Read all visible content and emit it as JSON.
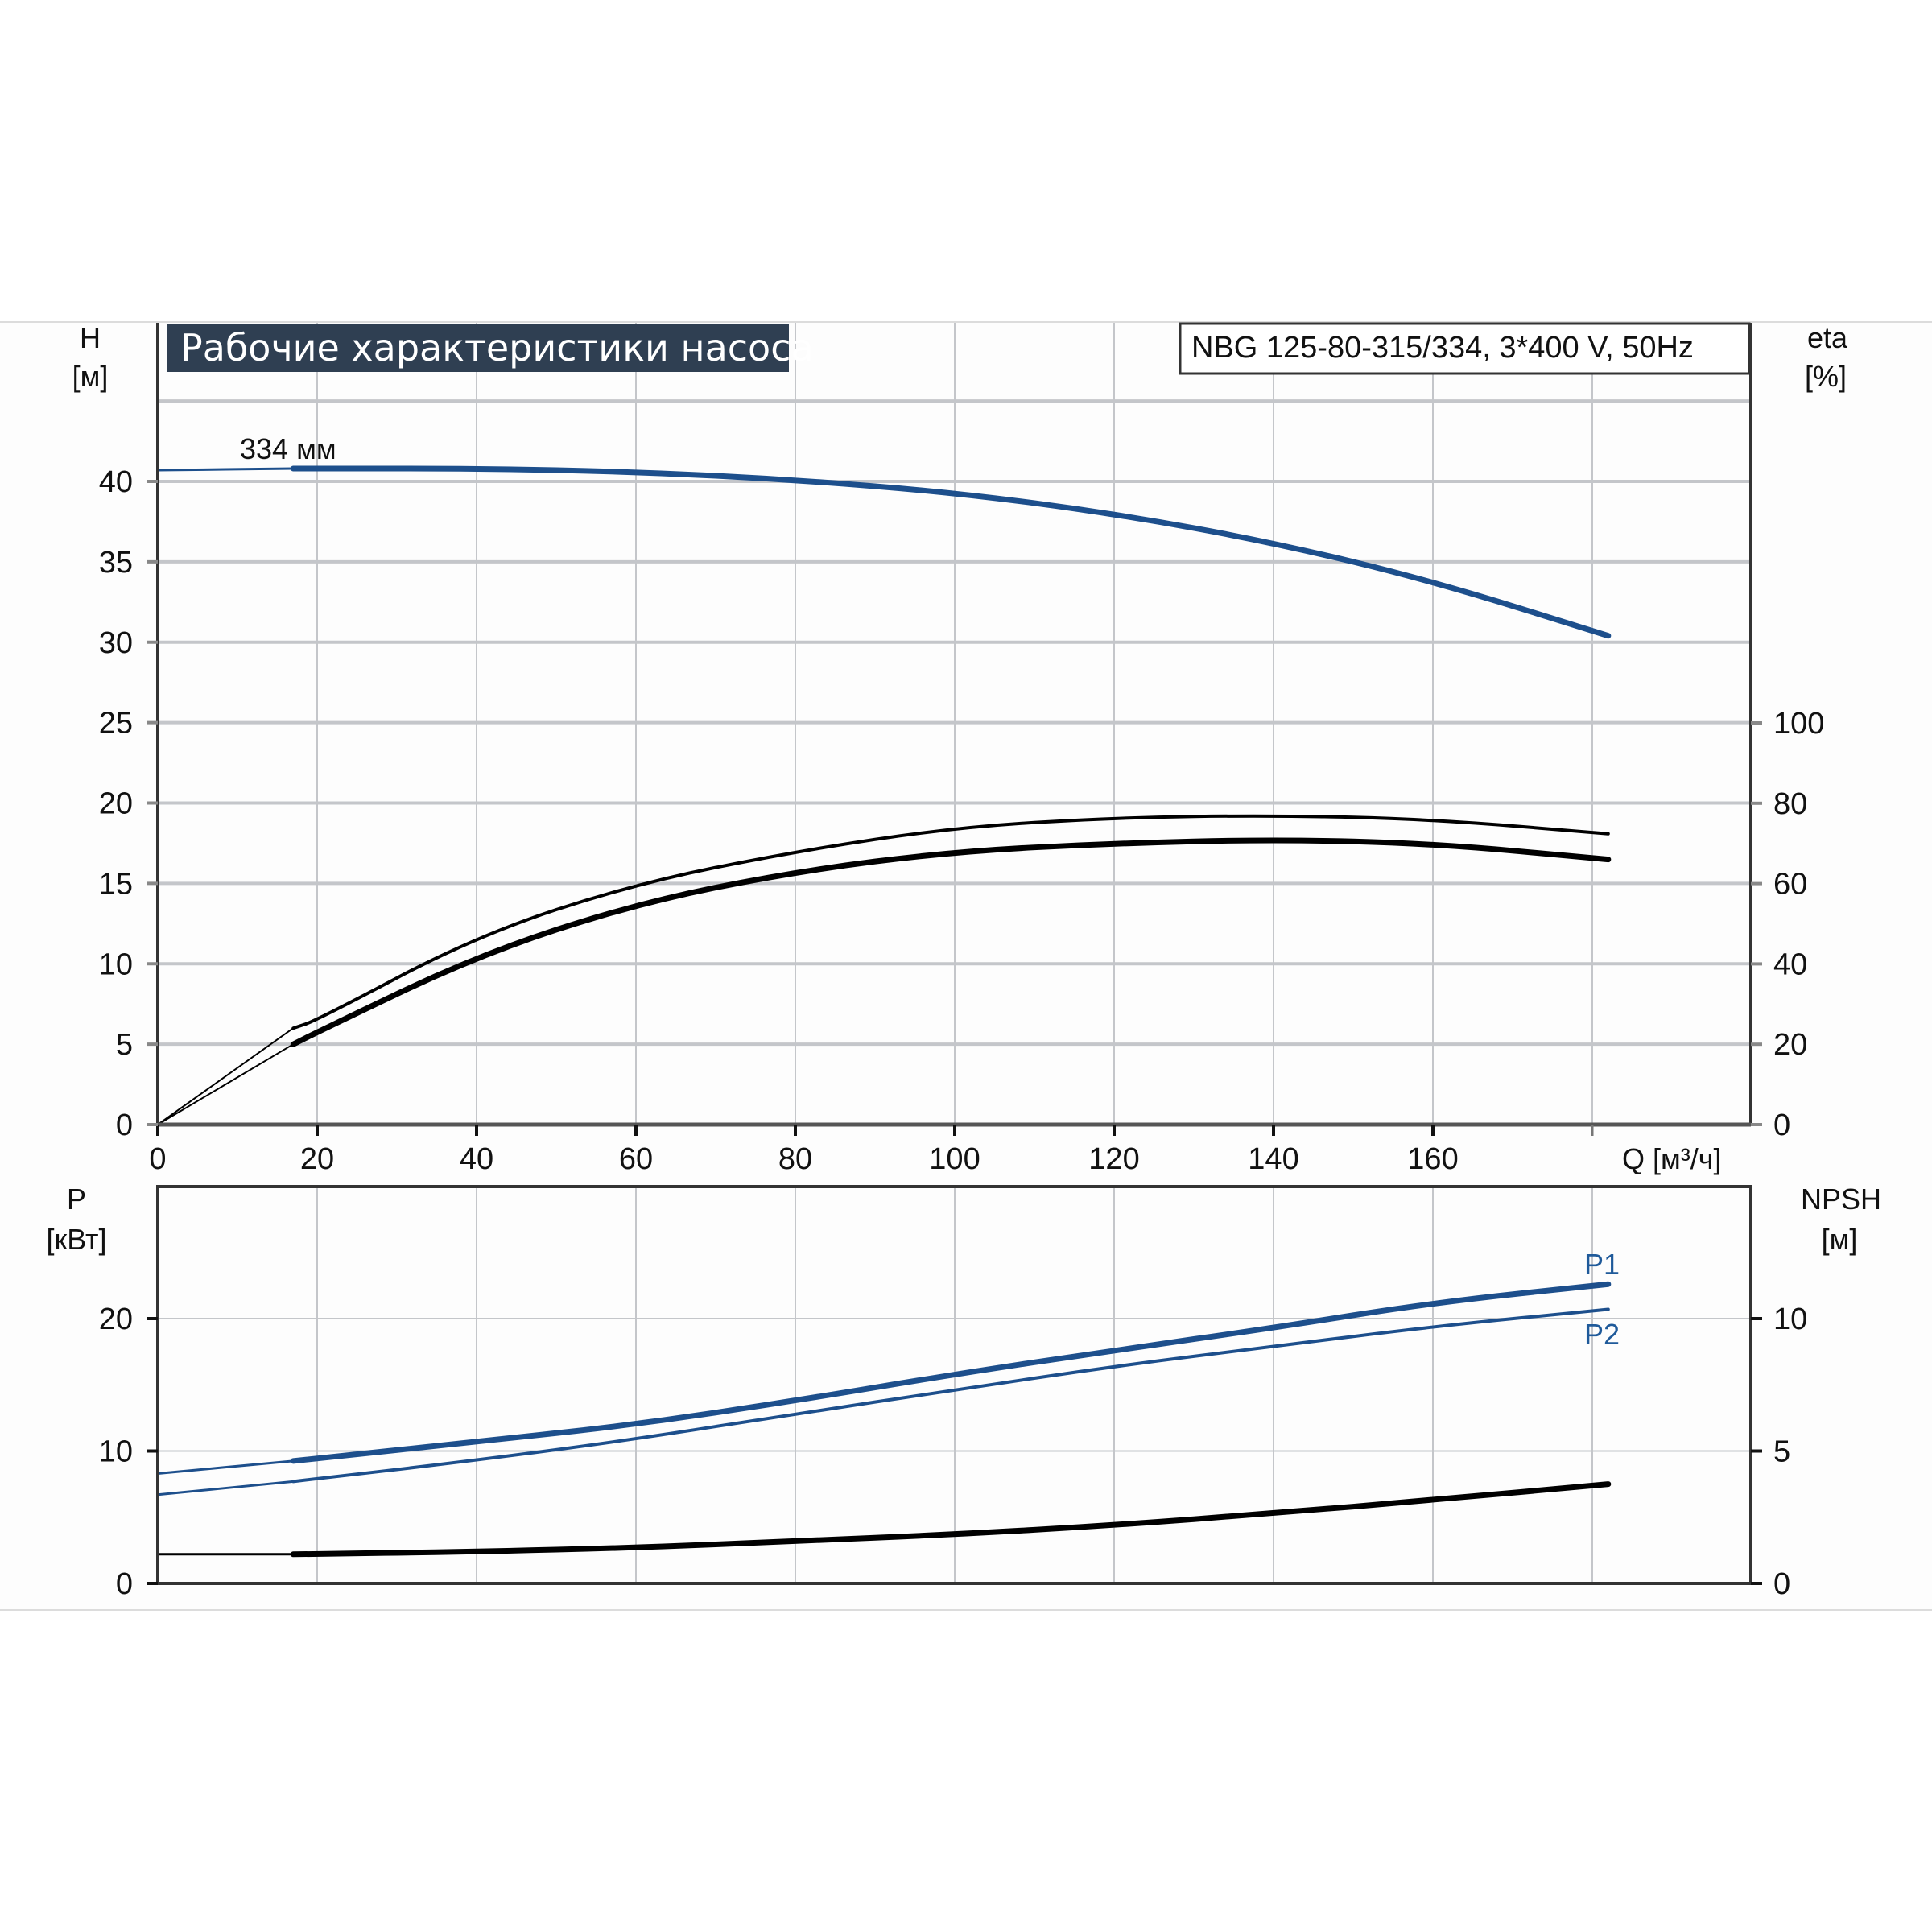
{
  "title": "Рабочие характеристики насоса",
  "model": "NBG 125-80-315/334, 3*400 V, 50Hz",
  "impeller_label": "334 мм",
  "colors": {
    "blue": "#1d4f8c",
    "black": "#000000",
    "title_bg": "#2f3f52",
    "grid": "#c4c6ca"
  },
  "chart_data": [
    {
      "type": "line",
      "name": "head-efficiency",
      "xlabel": "Q [м³/ч]",
      "ylabel": {
        "title": "H",
        "unit": "[м]"
      },
      "y2label": {
        "title": "eta",
        "unit": "[%]"
      },
      "xlim": [
        0,
        180
      ],
      "ylim": [
        0,
        45
      ],
      "y2lim": [
        0,
        100
      ],
      "x_ticks": [
        "0",
        "20",
        "40",
        "60",
        "80",
        "100",
        "120",
        "140",
        "160"
      ],
      "y_ticks": [
        "0",
        "5",
        "10",
        "15",
        "20",
        "25",
        "30",
        "35",
        "40"
      ],
      "y2_ticks": [
        "0",
        "20",
        "40",
        "60",
        "80",
        "100"
      ],
      "grid": true,
      "series": [
        {
          "axis": "left",
          "color": "#1d4f8c",
          "x": [
            0,
            17,
            20,
            40,
            60,
            80,
            100,
            120,
            140,
            160,
            182
          ],
          "y": [
            40.7,
            40.8,
            40.8,
            40.8,
            40.6,
            40.1,
            39.3,
            38.0,
            36.2,
            33.8,
            30.4
          ]
        },
        {
          "axis": "right",
          "color": "#000000",
          "x": [
            0,
            17,
            20,
            40,
            60,
            80,
            100,
            120,
            140,
            160,
            182
          ],
          "y": [
            0,
            24,
            26,
            47,
            60,
            68,
            74,
            76.4,
            77,
            76,
            72.4
          ]
        },
        {
          "axis": "right",
          "color": "#000000",
          "x": [
            0,
            17,
            20,
            40,
            60,
            80,
            100,
            120,
            140,
            160,
            182
          ],
          "y": [
            0,
            20,
            23,
            42,
            55,
            63,
            68,
            70,
            71,
            70,
            66
          ]
        }
      ]
    },
    {
      "type": "line",
      "name": "power-npsh",
      "ylabel": {
        "title": "P",
        "unit": "[кВт]"
      },
      "y2label": {
        "title": "NPSH",
        "unit": "[м]"
      },
      "xlim": [
        0,
        180
      ],
      "ylim": [
        0,
        30
      ],
      "y2lim": [
        0,
        15
      ],
      "y_ticks": [
        "0",
        "10",
        "20"
      ],
      "y2_ticks": [
        "0",
        "5",
        "10"
      ],
      "grid": true,
      "series": [
        {
          "name": "P1",
          "axis": "left",
          "color": "#1d4f8c",
          "x": [
            0,
            17,
            40,
            60,
            80,
            100,
            120,
            140,
            160,
            182
          ],
          "y": [
            8.3,
            9.25,
            10.7,
            12.0,
            13.8,
            15.8,
            17.6,
            19.3,
            21.2,
            22.6
          ]
        },
        {
          "name": "P2",
          "axis": "left",
          "color": "#1d4f8c",
          "x": [
            0,
            17,
            40,
            60,
            80,
            100,
            120,
            140,
            160,
            182
          ],
          "y": [
            6.7,
            7.7,
            9.3,
            10.9,
            12.8,
            14.6,
            16.4,
            17.9,
            19.4,
            20.7
          ]
        },
        {
          "axis": "right",
          "color": "#000000",
          "x": [
            0,
            17,
            40,
            60,
            80,
            100,
            120,
            140,
            160,
            182
          ],
          "y": [
            1.1,
            1.1,
            1.2,
            1.35,
            1.6,
            1.85,
            2.2,
            2.65,
            3.15,
            3.75
          ]
        }
      ]
    }
  ]
}
